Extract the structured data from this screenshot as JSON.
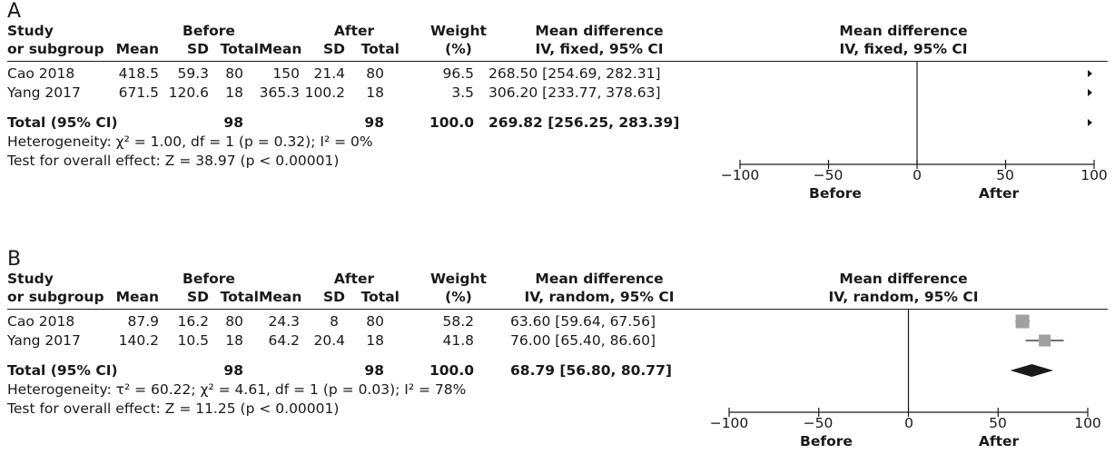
{
  "panels": [
    {
      "letter": "A",
      "headers": {
        "study1": "Study",
        "study2": "or subgroup",
        "before": "Before",
        "after": "After",
        "mean": "Mean",
        "sd": "SD",
        "total": "Total",
        "weight1": "Weight",
        "weight2": "(%)",
        "md1": "Mean difference",
        "md2": "IV, fixed, 95% CI",
        "plot1": "Mean difference",
        "plot2": "IV, fixed, 95% CI"
      },
      "rows": [
        {
          "study": "Cao 2018",
          "mean1": "418.5",
          "sd1": "59.3",
          "total1": "80",
          "mean2": "150",
          "sd2": "21.4",
          "total2": "80",
          "weight": "96.5",
          "ci": "268.50 [254.69, 282.31]"
        },
        {
          "study": "Yang 2017",
          "mean1": "671.5",
          "sd1": "120.6",
          "total1": "18",
          "mean2": "365.3",
          "sd2": "100.2",
          "total2": "18",
          "weight": "3.5",
          "ci": "306.20 [233.77, 378.63]"
        }
      ],
      "total": {
        "label": "Total (95% CI)",
        "total1": "98",
        "total2": "98",
        "weight": "100.0",
        "ci": "269.82 [256.25, 283.39]"
      },
      "heterogeneity": "Heterogeneity: χ² = 1.00, df = 1 (p = 0.32); I² = 0%",
      "overall": "Test for overall effect: Z = 38.97 (p < 0.00001)",
      "axis": {
        "ticks": [
          "−100",
          "−50",
          "0",
          "50",
          "100"
        ],
        "left_label": "Before",
        "right_label": "After"
      }
    },
    {
      "letter": "B",
      "headers": {
        "study1": "Study",
        "study2": "or subgroup",
        "before": "Before",
        "after": "After",
        "mean": "Mean",
        "sd": "SD",
        "total": "Total",
        "weight1": "Weight",
        "weight2": "(%)",
        "md1": "Mean difference",
        "md2": "IV, random, 95% CI",
        "plot1": "Mean difference",
        "plot2": "IV, random, 95% CI"
      },
      "rows": [
        {
          "study": "Cao 2018",
          "mean1": "87.9",
          "sd1": "16.2",
          "total1": "80",
          "mean2": "24.3",
          "sd2": "8",
          "total2": "80",
          "weight": "58.2",
          "ci": "63.60 [59.64, 67.56]"
        },
        {
          "study": "Yang 2017",
          "mean1": "140.2",
          "sd1": "10.5",
          "total1": "18",
          "mean2": "64.2",
          "sd2": "20.4",
          "total2": "18",
          "weight": "41.8",
          "ci": "76.00 [65.40, 86.60]"
        }
      ],
      "total": {
        "label": "Total (95% CI)",
        "total1": "98",
        "total2": "98",
        "weight": "100.0",
        "ci": "68.79 [56.80, 80.77]"
      },
      "heterogeneity": "Heterogeneity: τ² = 60.22; χ² = 4.61, df = 1 (p = 0.03); I² = 78%",
      "overall": "Test for overall effect: Z = 11.25 (p < 0.00001)",
      "axis": {
        "ticks": [
          "−100",
          "−50",
          "0",
          "50",
          "100"
        ],
        "left_label": "Before",
        "right_label": "After"
      }
    }
  ],
  "chart_data": [
    {
      "type": "forest",
      "title": "A",
      "xlim": [
        -100,
        100
      ],
      "xticks": [
        -100,
        -50,
        0,
        50,
        100
      ],
      "xlabel_left": "Before",
      "xlabel_right": "After",
      "studies": [
        {
          "name": "Cao 2018",
          "estimate": 268.5,
          "lower": 254.69,
          "upper": 282.31,
          "weight": 96.5
        },
        {
          "name": "Yang 2017",
          "estimate": 306.2,
          "lower": 233.77,
          "upper": 378.63,
          "weight": 3.5
        }
      ],
      "pooled": {
        "estimate": 269.82,
        "lower": 256.25,
        "upper": 283.39
      },
      "marker_color": "#1a1a1a",
      "box_color": "#a0a0a0"
    },
    {
      "type": "forest",
      "title": "B",
      "xlim": [
        -100,
        100
      ],
      "xticks": [
        -100,
        -50,
        0,
        50,
        100
      ],
      "xlabel_left": "Before",
      "xlabel_right": "After",
      "studies": [
        {
          "name": "Cao 2018",
          "estimate": 63.6,
          "lower": 59.64,
          "upper": 67.56,
          "weight": 58.2
        },
        {
          "name": "Yang 2017",
          "estimate": 76.0,
          "lower": 65.4,
          "upper": 86.6,
          "weight": 41.8
        }
      ],
      "pooled": {
        "estimate": 68.79,
        "lower": 56.8,
        "upper": 80.77
      },
      "marker_color": "#1a1a1a",
      "box_color": "#a0a0a0"
    }
  ]
}
